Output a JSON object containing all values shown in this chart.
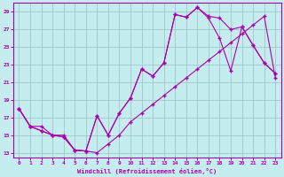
{
  "xlabel": "Windchill (Refroidissement éolien,°C)",
  "xlim": [
    -0.5,
    23.5
  ],
  "ylim": [
    12.5,
    30.0
  ],
  "yticks": [
    13,
    15,
    17,
    19,
    21,
    23,
    25,
    27,
    29
  ],
  "xticks": [
    0,
    1,
    2,
    3,
    4,
    5,
    6,
    7,
    8,
    9,
    10,
    11,
    12,
    13,
    14,
    15,
    16,
    17,
    18,
    19,
    20,
    21,
    22,
    23
  ],
  "bg_color": "#c5edf0",
  "line_color": "#aa00aa",
  "grid_color": "#a0c8c8",
  "line1_x": [
    0,
    1,
    2,
    3,
    4,
    5,
    6,
    7,
    8,
    9,
    10,
    11,
    12,
    13,
    14,
    15,
    16,
    17,
    18,
    19,
    20,
    21,
    22,
    23
  ],
  "line1_y": [
    18,
    16,
    16,
    15,
    15,
    13.3,
    13.2,
    13.0,
    14,
    15,
    16.5,
    17.5,
    18.5,
    19.5,
    20.5,
    21.5,
    22.5,
    23.5,
    24.5,
    25.5,
    26.5,
    27.5,
    28.5,
    21.5
  ],
  "line2_x": [
    0,
    1,
    2,
    3,
    4,
    5,
    6,
    7,
    8,
    9,
    10,
    11,
    12,
    13,
    14,
    15,
    16,
    17,
    18,
    19,
    20,
    21,
    22,
    23
  ],
  "line2_y": [
    18,
    16,
    15.5,
    15,
    14.8,
    13.3,
    13.2,
    17.2,
    15,
    17.5,
    19.2,
    22.5,
    21.7,
    23.2,
    28.7,
    28.4,
    29.5,
    28.5,
    28.3,
    27.0,
    27.3,
    25.2,
    23.2,
    22.0
  ],
  "line3_x": [
    0,
    1,
    2,
    3,
    4,
    5,
    6,
    7,
    8,
    9,
    10,
    11,
    12,
    13,
    14,
    15,
    16,
    17,
    18,
    19,
    20,
    21,
    22,
    23
  ],
  "line3_y": [
    18,
    16,
    15.5,
    15,
    14.8,
    13.3,
    13.2,
    17.2,
    15,
    17.5,
    19.2,
    22.5,
    21.7,
    23.2,
    28.7,
    28.4,
    29.5,
    28.3,
    26.0,
    22.3,
    27.3,
    25.2,
    23.2,
    22.0
  ]
}
